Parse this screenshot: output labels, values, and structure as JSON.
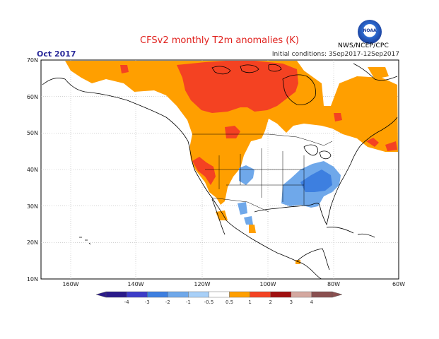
{
  "header": {
    "title": "CFSv2 monthly T2m anomalies (K)",
    "period": "Oct 2017",
    "initial_conditions": "Initial conditions: 3Sep2017-12Sep2017",
    "agency": "NWS/NCEP/CPC",
    "logo_text": "NOAA"
  },
  "map": {
    "lat_labels": [
      "70N",
      "60N",
      "50N",
      "40N",
      "30N",
      "20N",
      "10N"
    ],
    "lon_labels": [
      "160W",
      "140W",
      "120W",
      "100W",
      "80W",
      "60W"
    ],
    "colors": {
      "warm_1": "#ff9f00",
      "warm_2": "#f44222",
      "cool_1": "#6fa8ea",
      "cool_2": "#3d7fe0",
      "coast": "#000000",
      "grid": "#b8b8b8"
    }
  },
  "colorbar": {
    "labels": [
      "-4",
      "-3",
      "-2",
      "-1",
      "-0.5",
      "0.5",
      "1",
      "2",
      "3",
      "4"
    ],
    "colors": [
      "#2a1a8a",
      "#3c3cc8",
      "#3d7fe0",
      "#6fa8ea",
      "#a8d0f8",
      "#ffffff",
      "#ff9f00",
      "#f44222",
      "#a01010",
      "#d4a8a0",
      "#8a5050"
    ]
  }
}
